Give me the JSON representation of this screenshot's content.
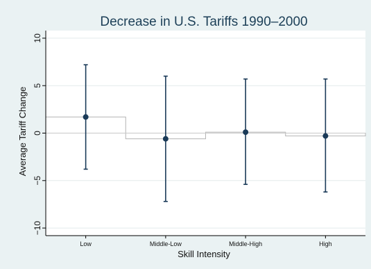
{
  "chart_data": {
    "type": "bar",
    "title": "Decrease in U.S. Tariffs 1990–2000",
    "xlabel": "Skill Intensity",
    "ylabel": "Average Tariff Change",
    "categories": [
      "Low",
      "Middle-Low",
      "Middle-High",
      "High"
    ],
    "values": [
      1.7,
      -0.6,
      0.1,
      -0.3
    ],
    "error_low": [
      -3.8,
      -7.2,
      -5.4,
      -6.2
    ],
    "error_high": [
      7.2,
      6.0,
      5.7,
      5.7
    ],
    "ylim": [
      -10.8,
      10.8
    ],
    "yticks": [
      -10,
      -5,
      0,
      5,
      10
    ],
    "ytick_labels": [
      "−10",
      "−5",
      "0",
      "5",
      "10"
    ],
    "grid": true,
    "colors": {
      "background": "#eaf2f3",
      "plot_background": "#ffffff",
      "bar_stroke": "#b4b4b4",
      "marker": "#1a3a58",
      "error_bar": "#1a3a58",
      "title": "#1c3f57"
    }
  }
}
